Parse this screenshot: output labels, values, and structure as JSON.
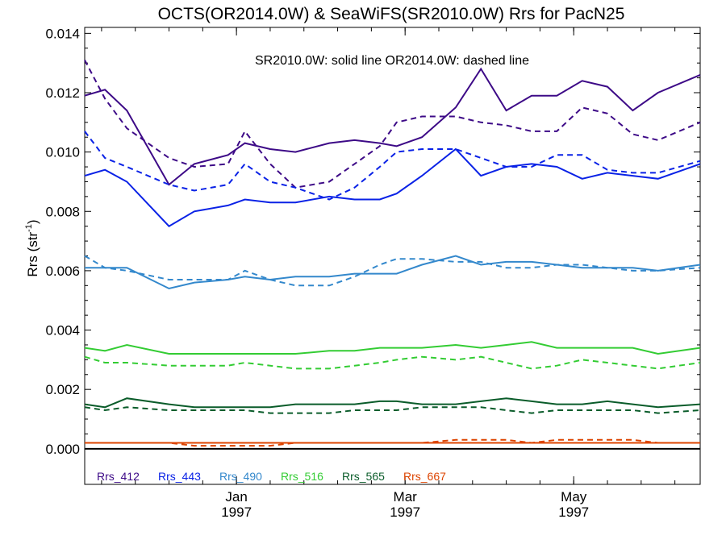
{
  "chart_data": {
    "type": "line",
    "title": "OCTS(OR2014.0W) & SeaWiFS(SR2010.0W)  Rrs for PacN25",
    "ylabel_main": "Rrs (str",
    "ylabel_sup": "-1",
    "ylabel_close": ")",
    "annotation": "SR2010.0W: solid line   OR2014.0W: dashed line",
    "ylim": [
      -0.0012,
      0.0142
    ],
    "y_ticks": [
      "0.000",
      "0.002",
      "0.004",
      "0.006",
      "0.008",
      "0.010",
      "0.012",
      "0.014"
    ],
    "x_ticks": [
      {
        "label": "Jan",
        "year": "1997",
        "x": 9
      },
      {
        "label": "Mar",
        "year": "1997",
        "x": 19
      },
      {
        "label": "May",
        "year": "1997",
        "x": 29
      }
    ],
    "xlim": [
      0,
      36.5
    ],
    "x": [
      0,
      1.2,
      2.5,
      5,
      6.5,
      8.5,
      9.5,
      11,
      12.5,
      14.5,
      16,
      17.5,
      18.5,
      20,
      22,
      23.5,
      25,
      26.5,
      28,
      29.5,
      31,
      32.5,
      34,
      36.5
    ],
    "series": [
      {
        "name": "Rrs_412",
        "color": "#3d0a87",
        "solid": [
          0.0119,
          0.0121,
          0.0114,
          0.0089,
          0.0096,
          0.0099,
          0.0103,
          0.0101,
          0.01,
          0.0103,
          0.0104,
          0.0103,
          0.0102,
          0.0105,
          0.0115,
          0.0128,
          0.0114,
          0.0119,
          0.0119,
          0.0124,
          0.0122,
          0.0114,
          0.012,
          0.0126
        ],
        "dashed": [
          0.0131,
          0.0118,
          0.0108,
          0.0098,
          0.0095,
          0.0096,
          0.0107,
          0.0096,
          0.0088,
          0.009,
          0.0096,
          0.0102,
          0.011,
          0.0112,
          0.0112,
          0.011,
          0.0109,
          0.0107,
          0.0107,
          0.0115,
          0.0113,
          0.0106,
          0.0104,
          0.011
        ]
      },
      {
        "name": "Rrs_443",
        "color": "#0a22e6",
        "solid": [
          0.0092,
          0.0094,
          0.009,
          0.0075,
          0.008,
          0.0082,
          0.0084,
          0.0083,
          0.0083,
          0.0085,
          0.0084,
          0.0084,
          0.0086,
          0.0092,
          0.0101,
          0.0092,
          0.0095,
          0.0096,
          0.0095,
          0.0091,
          0.0093,
          0.0092,
          0.0091,
          0.0096
        ],
        "dashed": [
          0.0107,
          0.0098,
          0.0095,
          0.0089,
          0.0087,
          0.0089,
          0.0096,
          0.009,
          0.0088,
          0.0084,
          0.0088,
          0.0095,
          0.01,
          0.0101,
          0.0101,
          0.0098,
          0.0095,
          0.0095,
          0.0099,
          0.0099,
          0.0094,
          0.0093,
          0.0093,
          0.0097
        ]
      },
      {
        "name": "Rrs_490",
        "color": "#3388cc",
        "solid": [
          0.0061,
          0.0061,
          0.0061,
          0.0054,
          0.0056,
          0.0057,
          0.0058,
          0.0057,
          0.0058,
          0.0058,
          0.0059,
          0.0059,
          0.0059,
          0.0062,
          0.0065,
          0.0062,
          0.0063,
          0.0063,
          0.0062,
          0.0061,
          0.0061,
          0.0061,
          0.006,
          0.0062
        ],
        "dashed": [
          0.0065,
          0.0061,
          0.006,
          0.0057,
          0.0057,
          0.0057,
          0.006,
          0.0057,
          0.0055,
          0.0055,
          0.0058,
          0.0062,
          0.0064,
          0.0064,
          0.0063,
          0.0063,
          0.0061,
          0.0061,
          0.0062,
          0.0062,
          0.0061,
          0.006,
          0.006,
          0.0061
        ]
      },
      {
        "name": "Rrs_516",
        "color": "#33cc33",
        "solid": [
          0.0034,
          0.0033,
          0.0035,
          0.0032,
          0.0032,
          0.0032,
          0.0032,
          0.0032,
          0.0032,
          0.0033,
          0.0033,
          0.0034,
          0.0034,
          0.0034,
          0.0035,
          0.0034,
          0.0035,
          0.0036,
          0.0034,
          0.0034,
          0.0034,
          0.0034,
          0.0032,
          0.0034
        ],
        "dashed": [
          0.0031,
          0.0029,
          0.0029,
          0.0028,
          0.0028,
          0.0028,
          0.0029,
          0.0028,
          0.0027,
          0.0027,
          0.0028,
          0.0029,
          0.003,
          0.0031,
          0.003,
          0.0031,
          0.0029,
          0.0027,
          0.0028,
          0.003,
          0.0029,
          0.0028,
          0.0027,
          0.0029
        ]
      },
      {
        "name": "Rrs_565",
        "color": "#0a5c2a",
        "solid": [
          0.0015,
          0.0014,
          0.0017,
          0.0015,
          0.0014,
          0.0014,
          0.0014,
          0.0014,
          0.0015,
          0.0015,
          0.0015,
          0.0016,
          0.0016,
          0.0015,
          0.0015,
          0.0016,
          0.0017,
          0.0016,
          0.0015,
          0.0015,
          0.0016,
          0.0015,
          0.0014,
          0.0015
        ],
        "dashed": [
          0.0014,
          0.0013,
          0.0014,
          0.0013,
          0.0013,
          0.0013,
          0.0013,
          0.0012,
          0.0012,
          0.0012,
          0.0013,
          0.0013,
          0.0013,
          0.0014,
          0.0014,
          0.0014,
          0.0013,
          0.0012,
          0.0013,
          0.0013,
          0.0013,
          0.0013,
          0.0012,
          0.0013
        ]
      },
      {
        "name": "Rrs_667",
        "color": "#dd4400",
        "solid": [
          0.0002,
          0.0002,
          0.0002,
          0.0002,
          0.0002,
          0.0002,
          0.0002,
          0.0002,
          0.0002,
          0.0002,
          0.0002,
          0.0002,
          0.0002,
          0.0002,
          0.0002,
          0.0002,
          0.0002,
          0.0002,
          0.0002,
          0.0002,
          0.0002,
          0.0002,
          0.0002,
          0.0002
        ],
        "dashed": [
          0.0002,
          0.0002,
          0.0002,
          0.0002,
          0.0001,
          0.0001,
          0.0001,
          0.0001,
          0.0002,
          0.0002,
          0.0002,
          0.0002,
          0.0002,
          0.0002,
          0.0003,
          0.0003,
          0.0003,
          0.0002,
          0.0003,
          0.0003,
          0.0003,
          0.0003,
          0.0002,
          0.0002
        ]
      }
    ]
  }
}
